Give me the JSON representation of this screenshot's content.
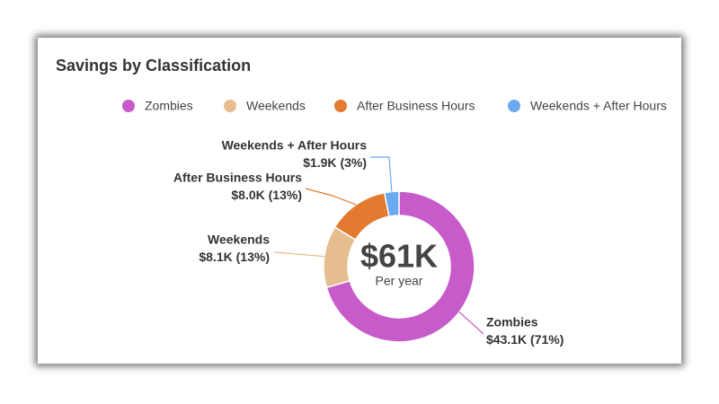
{
  "chart_data": {
    "type": "donut",
    "title": "Savings by Classification",
    "categories": [
      "Zombies",
      "Weekends",
      "After Business Hours",
      "Weekends + After Hours"
    ],
    "values": [
      43100,
      8100,
      8000,
      1900
    ],
    "value_labels": [
      "$43.1K",
      "$8.1K",
      "$8.0K",
      "$1.9K"
    ],
    "percents": [
      71,
      13,
      13,
      3
    ],
    "percent_labels": [
      "(71%)",
      "(13%)",
      "(13%)",
      "(3%)"
    ],
    "colors": [
      "#c75bc9",
      "#e6bd8f",
      "#e27a2f",
      "#6aaaf0"
    ],
    "center_text": "$61K",
    "center_subtext": "Per year",
    "legend": "top"
  }
}
